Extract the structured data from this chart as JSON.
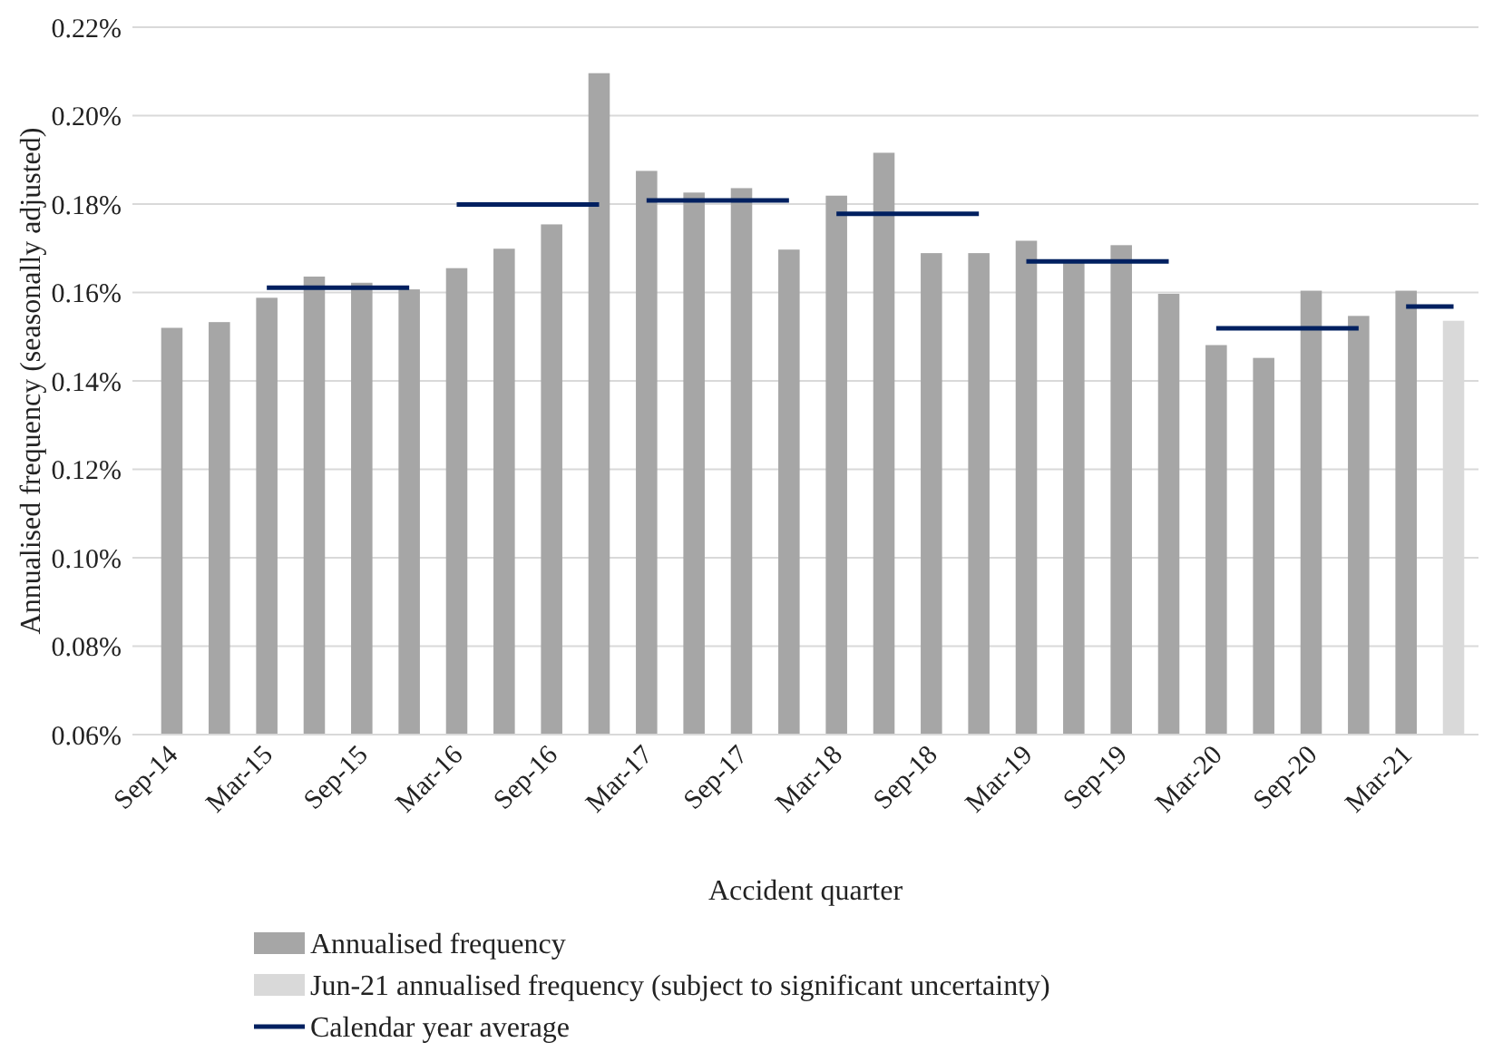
{
  "chart_data": {
    "type": "bar",
    "xlabel": "Accident quarter",
    "ylabel": "Annualised frequency (seasonally adjusted)",
    "categories": [
      "Sep-14",
      null,
      "Mar-15",
      null,
      "Sep-15",
      null,
      "Mar-16",
      null,
      "Sep-16",
      null,
      "Mar-17",
      null,
      "Sep-17",
      null,
      "Mar-18",
      null,
      "Sep-18",
      null,
      "Mar-19",
      null,
      "Sep-19",
      null,
      "Mar-20",
      null,
      "Sep-20",
      null,
      "Mar-21",
      null
    ],
    "series": [
      {
        "name": "Annualised frequency",
        "color": "#a6a6a6",
        "values": [
          0.152,
          0.1533,
          0.1588,
          0.1636,
          0.1622,
          0.1607,
          0.1655,
          0.1699,
          0.1754,
          0.2096,
          0.1875,
          0.1826,
          0.1836,
          0.1697,
          0.1819,
          0.1916,
          0.1689,
          0.1689,
          0.1717,
          0.167,
          0.1707,
          0.1597,
          0.1481,
          0.1452,
          0.1604,
          0.1547,
          0.1604,
          null
        ]
      },
      {
        "name": "Jun-21 annualised frequency (subject to significant uncertainty)",
        "color": "#d9d9d9",
        "values": [
          null,
          null,
          null,
          null,
          null,
          null,
          null,
          null,
          null,
          null,
          null,
          null,
          null,
          null,
          null,
          null,
          null,
          null,
          null,
          null,
          null,
          null,
          null,
          null,
          null,
          null,
          null,
          0.1536
        ]
      },
      {
        "name": "Calendar year average",
        "type": "line",
        "color": "#002060",
        "values": [
          null,
          null,
          0.1611,
          0.1611,
          0.1611,
          0.1611,
          null,
          null,
          null,
          null,
          null,
          null,
          null,
          null,
          null,
          null,
          null,
          null,
          null,
          null,
          null,
          null,
          null,
          null,
          null,
          null,
          null,
          null
        ]
      },
      {
        "type": "line",
        "color": "#002060",
        "values": [
          null,
          null,
          null,
          null,
          null,
          null,
          0.1799,
          0.1799,
          0.1799,
          0.1799,
          null,
          null,
          null,
          null,
          null,
          null,
          null,
          null,
          null,
          null,
          null,
          null,
          null,
          null,
          null,
          null,
          null,
          null
        ]
      },
      {
        "type": "line",
        "color": "#002060",
        "values": [
          null,
          null,
          null,
          null,
          null,
          null,
          null,
          null,
          null,
          null,
          0.1808,
          0.1808,
          0.1808,
          0.1808,
          null,
          null,
          null,
          null,
          null,
          null,
          null,
          null,
          null,
          null,
          null,
          null,
          null,
          null
        ]
      },
      {
        "type": "line",
        "color": "#002060",
        "values": [
          null,
          null,
          null,
          null,
          null,
          null,
          null,
          null,
          null,
          null,
          null,
          null,
          null,
          null,
          0.1778,
          0.1778,
          0.1778,
          0.1778,
          null,
          null,
          null,
          null,
          null,
          null,
          null,
          null,
          null,
          null
        ]
      },
      {
        "type": "line",
        "color": "#002060",
        "values": [
          null,
          null,
          null,
          null,
          null,
          null,
          null,
          null,
          null,
          null,
          null,
          null,
          null,
          null,
          null,
          null,
          null,
          null,
          0.167,
          0.167,
          0.167,
          0.167,
          null,
          null,
          null,
          null,
          null,
          null
        ]
      },
      {
        "type": "line",
        "color": "#002060",
        "values": [
          null,
          null,
          null,
          null,
          null,
          null,
          null,
          null,
          null,
          null,
          null,
          null,
          null,
          null,
          null,
          null,
          null,
          null,
          null,
          null,
          null,
          null,
          0.1519,
          0.1519,
          0.1519,
          0.1519,
          null,
          null
        ]
      },
      {
        "type": "line",
        "color": "#002060",
        "values": [
          null,
          null,
          null,
          null,
          null,
          null,
          null,
          null,
          null,
          null,
          null,
          null,
          null,
          null,
          null,
          null,
          null,
          null,
          null,
          null,
          null,
          null,
          null,
          null,
          null,
          null,
          0.1568,
          0.1568
        ]
      }
    ],
    "ylim": [
      0.06,
      0.22
    ],
    "yticks": [
      {
        "value": 0.06,
        "label": "0.06%"
      },
      {
        "value": 0.08,
        "label": "0.08%"
      },
      {
        "value": 0.1,
        "label": "0.10%"
      },
      {
        "value": 0.12,
        "label": "0.12%"
      },
      {
        "value": 0.14,
        "label": "0.14%"
      },
      {
        "value": 0.16,
        "label": "0.16%"
      },
      {
        "value": 0.18,
        "label": "0.18%"
      },
      {
        "value": 0.2,
        "label": "0.20%"
      },
      {
        "value": 0.22,
        "label": "0.22%"
      }
    ],
    "grid": "y",
    "legend": "bottom"
  }
}
